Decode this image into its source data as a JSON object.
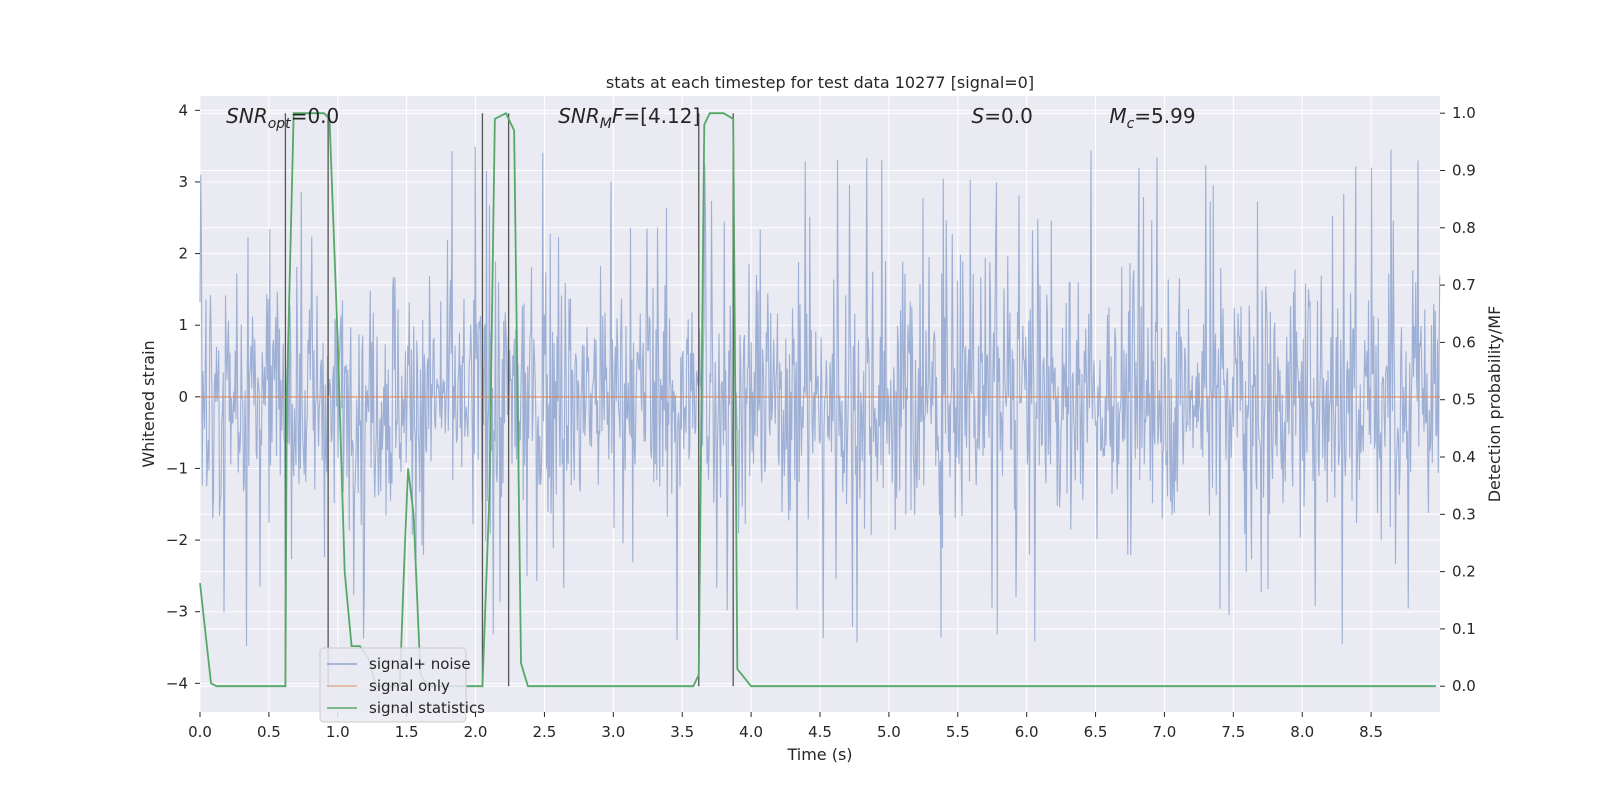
{
  "chart_data": {
    "type": "line",
    "title": "stats at each timestep for test data 10277 [signal=0]",
    "xlabel": "Time (s)",
    "ylabel_left": "Whitened strain",
    "ylabel_right": "Detection probability/MF",
    "xlim": [
      0.0,
      9.0
    ],
    "ylim_left": [
      -4.4,
      4.2
    ],
    "ylim_right": [
      -0.045,
      1.03
    ],
    "x_ticks": [
      "0.0",
      "0.5",
      "1.0",
      "1.5",
      "2.0",
      "2.5",
      "3.0",
      "3.5",
      "4.0",
      "4.5",
      "5.0",
      "5.5",
      "6.0",
      "6.5",
      "7.0",
      "7.5",
      "8.0",
      "8.5"
    ],
    "y_ticks_left": [
      "−4",
      "−3",
      "−2",
      "−1",
      "0",
      "1",
      "2",
      "3",
      "4"
    ],
    "y_ticks_right": [
      "0.0",
      "0.1",
      "0.2",
      "0.3",
      "0.4",
      "0.5",
      "0.6",
      "0.7",
      "0.8",
      "0.9",
      "1.0"
    ],
    "grid": true,
    "annotations": [
      {
        "text": "SNR_opt=0.0",
        "x": 0.19
      },
      {
        "text": "SNR_MF=[4.12]",
        "x": 2.6
      },
      {
        "text": "S=0.0",
        "x": 5.6
      },
      {
        "text": "M_c=5.99",
        "x": 6.6
      }
    ],
    "legend": {
      "placement": "lower-left",
      "entries": [
        "signal+ noise",
        "signal only",
        "signal statistics"
      ]
    },
    "colors": {
      "signal_noise": "#8fa5cf",
      "signal_only": "#dd8452",
      "statistics": "#55a868",
      "vlines": "#555555",
      "background": "#eaeaf2"
    },
    "series": [
      {
        "name": "signal+ noise",
        "axis": "left",
        "description_stats": {
          "x_range": [
            0.0,
            9.0
          ],
          "typical_amplitude": 1.4,
          "max_abs": 4.0,
          "seed": 10277
        }
      },
      {
        "name": "signal only",
        "axis": "left",
        "x": [
          0.0,
          9.0
        ],
        "y": [
          0.0,
          0.0
        ]
      },
      {
        "name": "signal statistics",
        "axis": "right",
        "x": [
          0.0,
          0.08,
          0.12,
          0.62,
          0.63,
          0.68,
          0.72,
          0.9,
          0.94,
          1.0,
          1.05,
          1.1,
          1.16,
          1.22,
          1.28,
          1.34,
          1.4,
          1.45,
          1.48,
          1.51,
          1.55,
          1.6,
          1.66,
          1.7,
          1.8,
          2.05,
          2.1,
          2.14,
          2.22,
          2.28,
          2.33,
          2.38,
          2.45,
          3.58,
          3.62,
          3.66,
          3.7,
          3.8,
          3.87,
          3.9,
          4.0,
          8.97
        ],
        "y": [
          0.18,
          0.005,
          0.0,
          0.0,
          0.5,
          1.0,
          1.0,
          1.0,
          0.99,
          0.6,
          0.2,
          0.07,
          0.07,
          0.05,
          0.0,
          0.0,
          0.0,
          0.0,
          0.2,
          0.38,
          0.3,
          0.02,
          0.0,
          0.0,
          0.0,
          0.0,
          0.33,
          0.99,
          1.0,
          0.97,
          0.04,
          0.0,
          0.0,
          0.0,
          0.02,
          0.98,
          1.0,
          1.0,
          0.99,
          0.03,
          0.0,
          0.0
        ]
      }
    ],
    "vertical_lines_x": [
      0.62,
      0.93,
      2.05,
      2.24,
      3.62,
      3.87
    ]
  }
}
